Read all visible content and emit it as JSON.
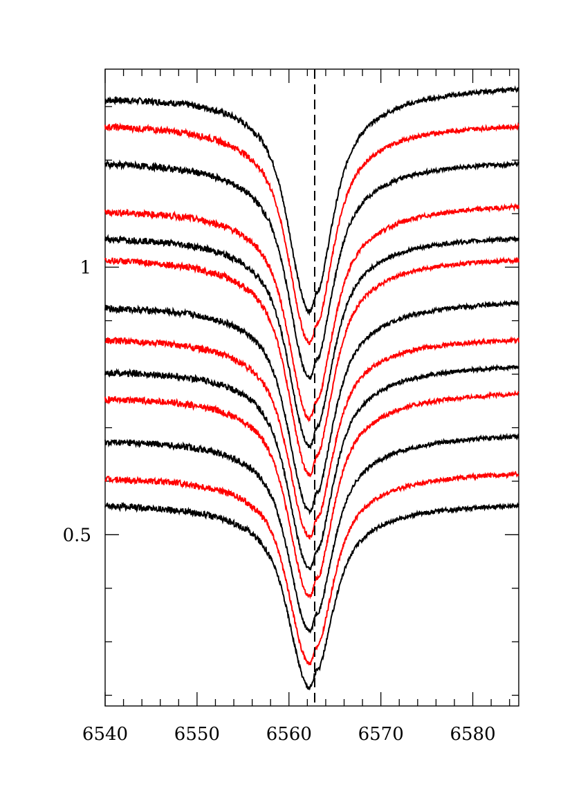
{
  "chart_data": {
    "type": "line",
    "title": "",
    "xlabel": "",
    "ylabel": "",
    "xlim": [
      6540,
      6585
    ],
    "ylim": [
      0.18,
      1.37
    ],
    "x_ticks": [
      6540,
      6550,
      6560,
      6570,
      6580
    ],
    "x_tick_labels": [
      "6540",
      "6550",
      "6560",
      "6570",
      "6580"
    ],
    "y_ticks": [
      0.5,
      1
    ],
    "y_tick_labels": [
      "0.5",
      "1"
    ],
    "reference_line_x": 6562.8,
    "grid": false,
    "legend": "none",
    "colors": {
      "black": "#000000",
      "red": "#ff0000"
    },
    "series": [
      {
        "color": "#000000",
        "left": 1.32,
        "right": 1.34,
        "core": 0.917
      },
      {
        "color": "#ff0000",
        "left": 1.27,
        "right": 1.27,
        "core": 0.858
      },
      {
        "color": "#000000",
        "left": 1.2,
        "right": 1.2,
        "core": 0.792
      },
      {
        "color": "#ff0000",
        "left": 1.11,
        "right": 1.12,
        "core": 0.716
      },
      {
        "color": "#000000",
        "left": 1.06,
        "right": 1.06,
        "core": 0.665
      },
      {
        "color": "#ff0000",
        "left": 1.02,
        "right": 1.02,
        "core": 0.611
      },
      {
        "color": "#000000",
        "left": 0.93,
        "right": 0.94,
        "core": 0.543
      },
      {
        "color": "#ff0000",
        "left": 0.87,
        "right": 0.87,
        "core": 0.495
      },
      {
        "color": "#000000",
        "left": 0.81,
        "right": 0.82,
        "core": 0.435
      },
      {
        "color": "#ff0000",
        "left": 0.76,
        "right": 0.77,
        "core": 0.384
      },
      {
        "color": "#000000",
        "left": 0.68,
        "right": 0.69,
        "core": 0.32
      },
      {
        "color": "#ff0000",
        "left": 0.61,
        "right": 0.62,
        "core": 0.258
      },
      {
        "color": "#000000",
        "left": 0.56,
        "right": 0.56,
        "core": 0.214
      }
    ]
  }
}
